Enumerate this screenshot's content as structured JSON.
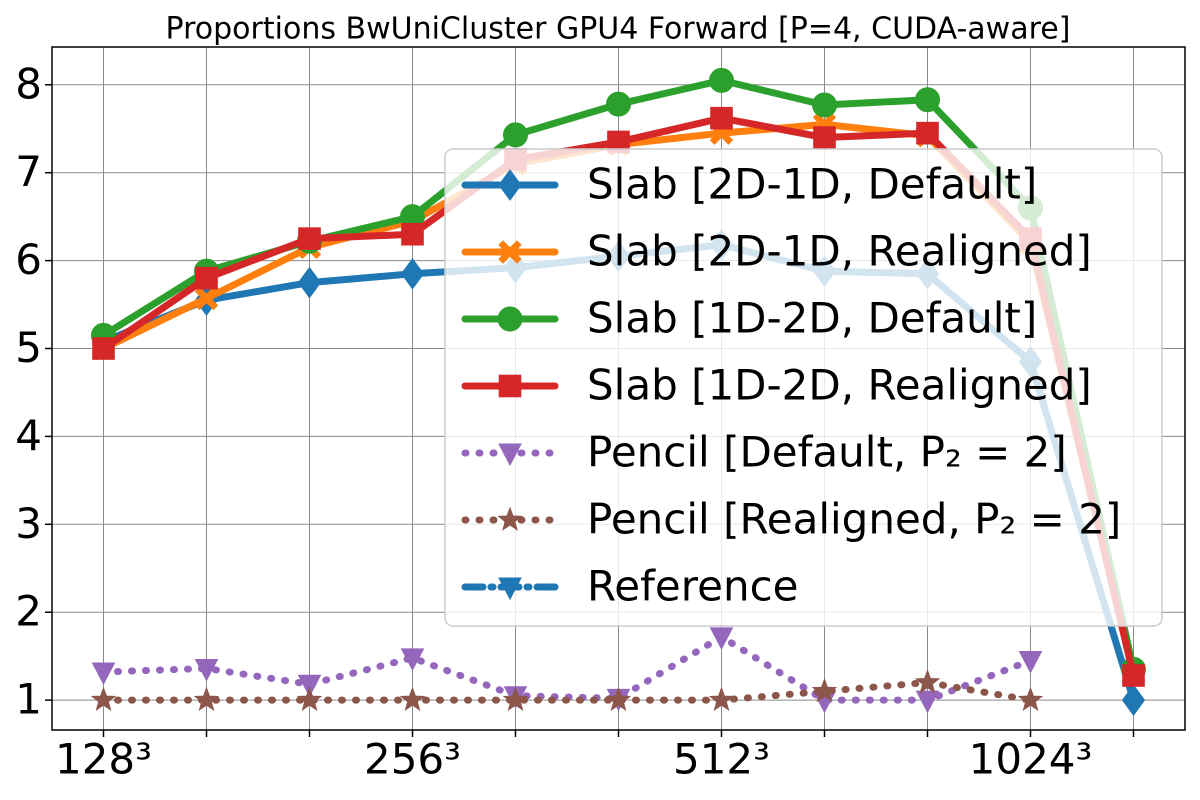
{
  "chart_data": {
    "type": "line",
    "title": "Proportions BwUniCluster GPU4 Forward [P=4, CUDA-aware]",
    "categories": [
      "128³",
      null,
      null,
      "256³",
      null,
      null,
      "512³",
      null,
      null,
      "1024³",
      null
    ],
    "xlim": [
      -0.5,
      10.5
    ],
    "ylim": [
      0.66,
      8.43
    ],
    "yticks": [
      1,
      2,
      3,
      4,
      5,
      6,
      7,
      8
    ],
    "grid": true,
    "legend": "center right",
    "series": [
      {
        "name": "Slab [2D-1D, Default]",
        "color": "#1f77b4",
        "marker": "diamond",
        "linestyle": "solid",
        "values": [
          5.08,
          5.55,
          5.75,
          5.85,
          5.92,
          6.05,
          6.18,
          5.88,
          5.85,
          4.85,
          1.0
        ]
      },
      {
        "name": "Slab [2D-1D, Realigned]",
        "color": "#ff7f0e",
        "marker": "x",
        "linestyle": "solid",
        "values": [
          5.0,
          5.57,
          6.15,
          6.45,
          7.1,
          7.32,
          7.45,
          7.55,
          7.42,
          6.2,
          1.3
        ]
      },
      {
        "name": "Slab [1D-2D, Default]",
        "color": "#2ca02c",
        "marker": "circle",
        "linestyle": "solid",
        "values": [
          5.15,
          5.88,
          6.22,
          6.5,
          7.43,
          7.78,
          8.05,
          7.77,
          7.83,
          6.6,
          1.35
        ]
      },
      {
        "name": "Slab [1D-2D, Realigned]",
        "color": "#d62728",
        "marker": "square",
        "linestyle": "solid",
        "values": [
          5.0,
          5.8,
          6.25,
          6.3,
          7.15,
          7.35,
          7.62,
          7.4,
          7.45,
          6.25,
          1.28
        ]
      },
      {
        "name": "Pencil [Default, P₂ = 2]",
        "color": "#9467bd",
        "marker": "triangle-down",
        "linestyle": "dotted",
        "values": [
          1.32,
          1.36,
          1.18,
          1.48,
          1.05,
          1.02,
          1.72,
          1.0,
          1.0,
          1.45,
          null
        ]
      },
      {
        "name": "Pencil [Realigned, P₂ = 2]",
        "color": "#8c564b",
        "marker": "star",
        "linestyle": "dotted",
        "values": [
          1.0,
          1.0,
          1.0,
          1.0,
          1.0,
          1.0,
          1.0,
          1.1,
          1.2,
          1.0,
          null
        ]
      },
      {
        "name": "Reference",
        "color": "#1f77b4",
        "marker": "triangle-down",
        "linestyle": "dashdot",
        "values": [
          null,
          null,
          null,
          null,
          null,
          null,
          null,
          null,
          null,
          null,
          null
        ]
      }
    ]
  }
}
